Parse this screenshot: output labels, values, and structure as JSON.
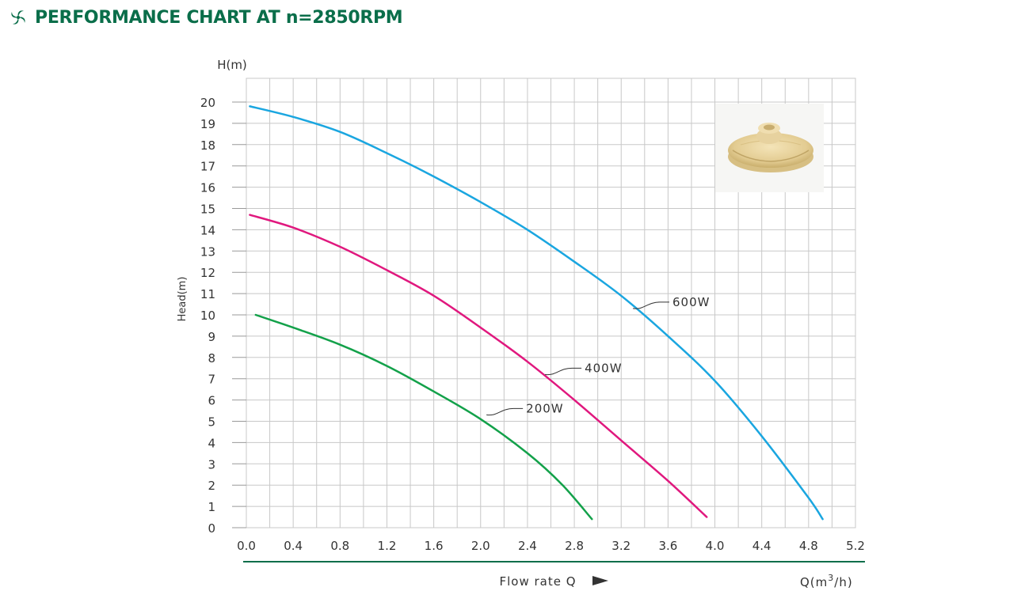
{
  "header": {
    "title": "PERFORMANCE CHART AT n=2850RPM",
    "icon": "fan-swirl-icon",
    "accent_color": "#0a6e4a"
  },
  "chart_data": {
    "type": "line",
    "ylabel_top": "H(m)",
    "ylabel_side": "Head(m)",
    "xlabel": "Flow rate Q",
    "xunit_prefix": "Q(m",
    "xunit_sup": "3",
    "xunit_suffix": "/h)",
    "xlim": [
      0,
      5.2
    ],
    "ylim": [
      0,
      20.5
    ],
    "grid": true,
    "x_ticks": [
      "0.0",
      "0.4",
      "0.8",
      "1.2",
      "1.6",
      "2.0",
      "2.4",
      "2.8",
      "3.2",
      "3.6",
      "4.0",
      "4.4",
      "4.8",
      "5.2"
    ],
    "y_ticks": [
      "0",
      "1",
      "2",
      "3",
      "4",
      "5",
      "6",
      "7",
      "8",
      "9",
      "10",
      "11",
      "12",
      "13",
      "14",
      "15",
      "16",
      "17",
      "18",
      "19",
      "20"
    ],
    "series": [
      {
        "name": "600W",
        "color": "#1aa6e0",
        "x": [
          0.03,
          0.4,
          0.8,
          1.2,
          1.6,
          2.0,
          2.4,
          2.8,
          3.2,
          3.6,
          4.0,
          4.4,
          4.8,
          4.92
        ],
        "y": [
          19.8,
          19.3,
          18.6,
          17.6,
          16.5,
          15.3,
          14.0,
          12.5,
          10.9,
          9.0,
          6.9,
          4.3,
          1.4,
          0.4
        ],
        "label_at": [
          3.3,
          10.3
        ]
      },
      {
        "name": "400W",
        "color": "#e0187e",
        "x": [
          0.03,
          0.4,
          0.8,
          1.2,
          1.6,
          2.0,
          2.4,
          2.8,
          3.2,
          3.6,
          3.93
        ],
        "y": [
          14.7,
          14.1,
          13.2,
          12.1,
          10.9,
          9.4,
          7.8,
          6.0,
          4.1,
          2.2,
          0.5
        ],
        "label_at": [
          2.55,
          7.2
        ]
      },
      {
        "name": "200W",
        "color": "#13a14a",
        "x": [
          0.08,
          0.4,
          0.8,
          1.2,
          1.6,
          2.0,
          2.4,
          2.7,
          2.95
        ],
        "y": [
          10.0,
          9.4,
          8.6,
          7.6,
          6.4,
          5.1,
          3.5,
          2.0,
          0.4
        ],
        "label_at": [
          2.05,
          5.3
        ]
      }
    ]
  }
}
